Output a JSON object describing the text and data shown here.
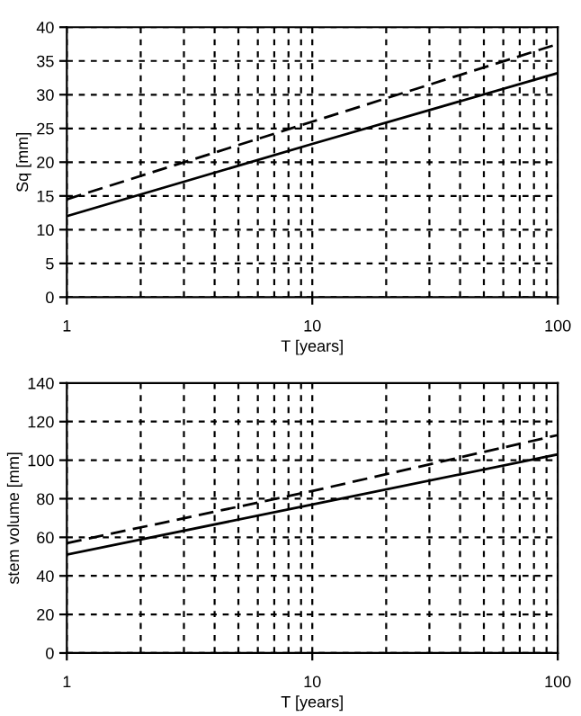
{
  "chart_data": [
    {
      "type": "line",
      "xlabel": "T [years]",
      "ylabel": "Sq [mm]",
      "log": "x",
      "xlim": [
        1,
        100
      ],
      "xticks": [
        1,
        10,
        100
      ],
      "ylim": [
        0,
        40
      ],
      "yticks": [
        0,
        5,
        10,
        15,
        20,
        25,
        30,
        35,
        40
      ],
      "grid": true,
      "x": [
        1,
        10,
        100
      ],
      "series": [
        {
          "color": "#000000",
          "line_style": "solid",
          "values": [
            12,
            22.7,
            33.2
          ]
        },
        {
          "color": "#000000",
          "line_style": "dashed",
          "values": [
            14.5,
            26,
            37.5
          ]
        }
      ]
    },
    {
      "type": "line",
      "xlabel": "T [years]",
      "ylabel": "stem volume [mm]",
      "log": "x",
      "xlim": [
        1,
        100
      ],
      "xticks": [
        1,
        10,
        100
      ],
      "ylim": [
        0,
        140
      ],
      "yticks": [
        0,
        20,
        40,
        60,
        80,
        100,
        120,
        140
      ],
      "grid": true,
      "x": [
        1,
        10,
        100
      ],
      "series": [
        {
          "color": "#000000",
          "line_style": "solid",
          "values": [
            51,
            77,
            103
          ]
        },
        {
          "color": "#000000",
          "line_style": "dashed",
          "values": [
            57,
            84,
            113
          ]
        }
      ]
    }
  ]
}
